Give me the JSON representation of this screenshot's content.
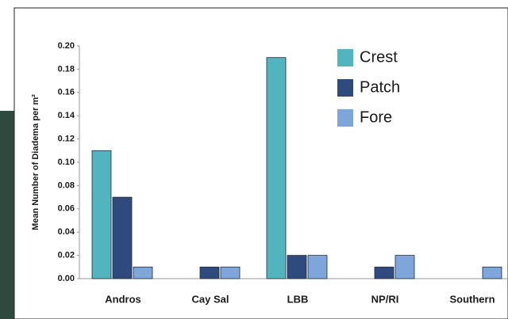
{
  "chart_data": {
    "type": "bar",
    "y_label": "Mean Number of Diadema per m²",
    "categories": [
      "Andros",
      "Cay Sal",
      "LBB",
      "NP/RI",
      "Southern"
    ],
    "series": [
      {
        "name": "Crest",
        "color": "#52b4be",
        "values": [
          0.11,
          0,
          0.19,
          0,
          0
        ]
      },
      {
        "name": "Patch",
        "color": "#2f4b7e",
        "values": [
          0.07,
          0.01,
          0.02,
          0.01,
          0
        ]
      },
      {
        "name": "Fore",
        "color": "#7ea6da",
        "values": [
          0.01,
          0.01,
          0.02,
          0.02,
          0.01
        ]
      }
    ],
    "ylim": [
      0,
      0.2
    ],
    "yticks": [
      {
        "value": 0,
        "label": "0.00"
      },
      0.02,
      0.04,
      0.06,
      0.08,
      {
        "value": 0.1,
        "label": "0.10"
      },
      0.12,
      0.14,
      0.16,
      0.18,
      {
        "value": 0.2,
        "label": "0.20"
      }
    ]
  }
}
